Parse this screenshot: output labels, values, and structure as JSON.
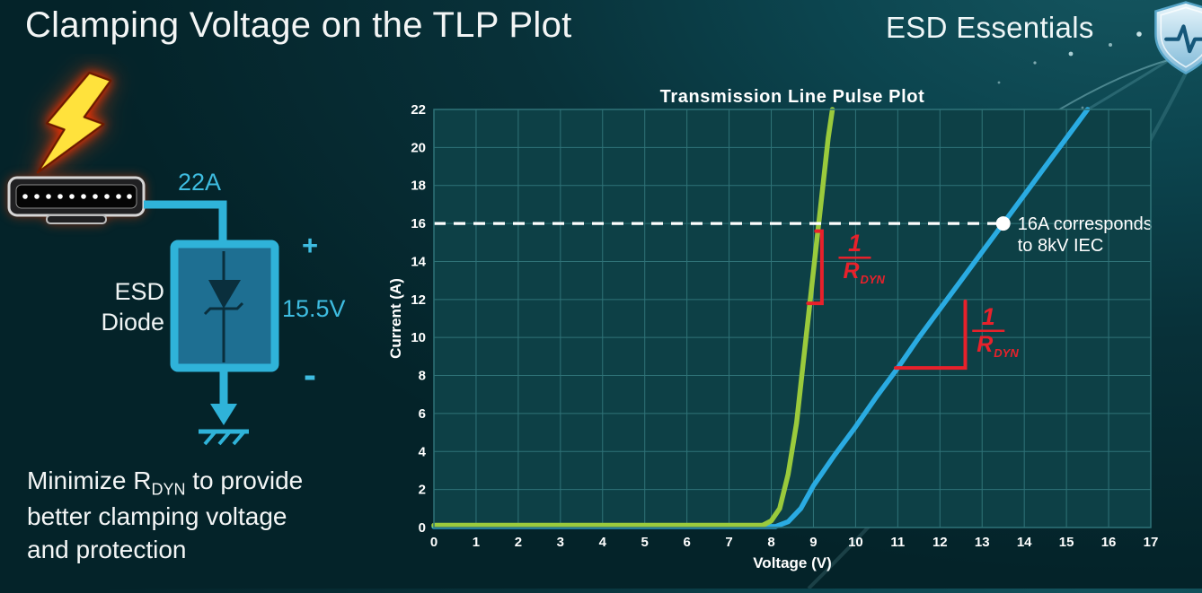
{
  "page": {
    "title": "Clamping Voltage on the TLP Plot",
    "brand": "ESD Essentials"
  },
  "left_diagram": {
    "surge_current_label": "22A",
    "clamp_voltage_label": "15.5V",
    "polarity_plus": "+",
    "polarity_minus": "-",
    "component_name_line1": "ESD",
    "component_name_line2": "Diode",
    "accent_color": "#3ebce0"
  },
  "note": {
    "line1_pre": "Minimize R",
    "line1_sub": "DYN",
    "line1_post": " to provide",
    "line2": "better clamping voltage",
    "line3": "and protection"
  },
  "chart_data": {
    "type": "line",
    "title": "Transmission Line Pulse Plot",
    "xlabel": "Voltage (V)",
    "ylabel": "Current (A)",
    "xlim": [
      0,
      17
    ],
    "ylim": [
      0,
      22
    ],
    "xtick_step": 1,
    "ytick_step": 2,
    "grid": true,
    "plot_bg": "#0d4046",
    "grid_color": "#2f7378",
    "annotation_color": "#e8212b",
    "series": [
      {
        "name": "blue curve",
        "color": "#2aabe2",
        "points": [
          [
            0,
            0.05
          ],
          [
            8.1,
            0.05
          ],
          [
            8.4,
            0.3
          ],
          [
            8.7,
            1.0
          ],
          [
            9.0,
            2.2
          ],
          [
            9.5,
            3.8
          ],
          [
            10,
            5.3
          ],
          [
            10.5,
            6.9
          ],
          [
            11,
            8.4
          ],
          [
            11.5,
            10
          ],
          [
            12,
            11.5
          ],
          [
            12.5,
            13
          ],
          [
            13,
            14.5
          ],
          [
            13.5,
            16
          ],
          [
            14,
            17.5
          ],
          [
            14.5,
            19
          ],
          [
            15,
            20.5
          ],
          [
            15.5,
            22
          ]
        ]
      },
      {
        "name": "green curve",
        "color": "#9aca3c",
        "points": [
          [
            0,
            0.12
          ],
          [
            7.8,
            0.12
          ],
          [
            8.0,
            0.35
          ],
          [
            8.2,
            1.0
          ],
          [
            8.4,
            2.8
          ],
          [
            8.6,
            5.5
          ],
          [
            8.75,
            8.5
          ],
          [
            8.9,
            11.5
          ],
          [
            9.05,
            14.5
          ],
          [
            9.2,
            17.5
          ],
          [
            9.35,
            20.5
          ],
          [
            9.45,
            22
          ]
        ]
      }
    ],
    "reference_line": {
      "y": 16,
      "x_start": 0,
      "x_end": 13.5,
      "color": "#ffffff",
      "style": "dashed"
    },
    "marker_point": {
      "x": 13.5,
      "y": 16,
      "label_lines": [
        "16A corresponds",
        "to 8kV IEC"
      ]
    },
    "slope_annotations": [
      {
        "bracket": [
          [
            8.87,
            11.8
          ],
          [
            9.2,
            11.8
          ],
          [
            9.2,
            15.6
          ],
          [
            9.06,
            15.6
          ]
        ],
        "frac_cx": 9.98,
        "frac_cy": 14.2,
        "num": "1",
        "den": "R",
        "den_sub": "DYN"
      },
      {
        "bracket": [
          [
            10.95,
            8.4
          ],
          [
            12.6,
            8.4
          ],
          [
            12.6,
            11.9
          ]
        ],
        "frac_cx": 13.15,
        "frac_cy": 10.35,
        "num": "1",
        "den": "R",
        "den_sub": "DYN"
      }
    ]
  }
}
